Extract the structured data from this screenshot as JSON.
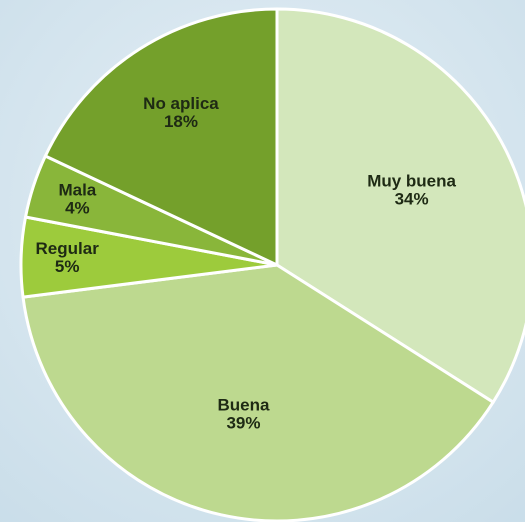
{
  "chart_data": {
    "type": "pie",
    "categories": [
      "Muy buena",
      "Buena",
      "Regular",
      "Mala",
      "No aplica"
    ],
    "values": [
      34,
      39,
      5,
      4,
      18
    ],
    "value_labels": [
      "34%",
      "39%",
      "5%",
      "4%",
      "18%"
    ],
    "colors": [
      "#d3e7bb",
      "#bdd98f",
      "#9dcb3c",
      "#89b63a",
      "#74a02b"
    ]
  }
}
